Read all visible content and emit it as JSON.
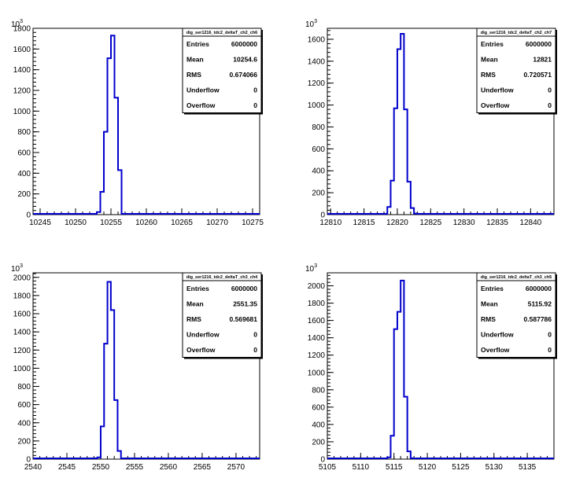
{
  "colors": {
    "histogram": "#0000cc",
    "frame": "#000000",
    "background": "#ffffff"
  },
  "chart_data": [
    {
      "type": "bar",
      "histogram_style": "step",
      "title": "dig_ser1216_tdc2_deltaT_ch2_ch6",
      "xlim": [
        10244,
        10276
      ],
      "ylim": [
        0,
        1800
      ],
      "y_exponent": "10",
      "y_exponent_power": "3",
      "bin_width": 0.5,
      "x": [
        10253.0,
        10253.5,
        10254.0,
        10254.5,
        10255.0,
        10255.5,
        10256.0
      ],
      "values": [
        25,
        220,
        800,
        1510,
        1730,
        1130,
        430
      ],
      "xticks": [
        10245,
        10250,
        10255,
        10260,
        10265,
        10270,
        10275
      ],
      "yticks": [
        0,
        200,
        400,
        600,
        800,
        1000,
        1200,
        1400,
        1600,
        1800
      ],
      "stats": [
        {
          "label": "Entries",
          "value": "6000000"
        },
        {
          "label": "Mean",
          "value": "10254.6"
        },
        {
          "label": "RMS",
          "value": "0.674066"
        },
        {
          "label": "Underflow",
          "value": "0"
        },
        {
          "label": "Overflow",
          "value": "0"
        }
      ]
    },
    {
      "type": "bar",
      "histogram_style": "step",
      "title": "dig_ser1216_tdc2_deltaT_ch2_ch7",
      "xlim": [
        12809.5,
        12843.5
      ],
      "ylim": [
        0,
        1700
      ],
      "y_exponent": "10",
      "y_exponent_power": "3",
      "bin_width": 0.5,
      "x": [
        12818.5,
        12819.0,
        12819.5,
        12820.0,
        12820.5,
        12821.0,
        12821.5,
        12822.0,
        12822.5
      ],
      "values": [
        70,
        310,
        970,
        1510,
        1650,
        960,
        300,
        60,
        10
      ],
      "xticks": [
        12810,
        12815,
        12820,
        12825,
        12830,
        12835,
        12840
      ],
      "yticks": [
        0,
        200,
        400,
        600,
        800,
        1000,
        1200,
        1400,
        1600
      ],
      "stats": [
        {
          "label": "Entries",
          "value": "6000000"
        },
        {
          "label": "Mean",
          "value": "12821"
        },
        {
          "label": "RMS",
          "value": "0.720571"
        },
        {
          "label": "Underflow",
          "value": "0"
        },
        {
          "label": "Overflow",
          "value": "0"
        }
      ]
    },
    {
      "type": "bar",
      "histogram_style": "step",
      "title": "dig_ser1216_tdc2_deltaT_ch3_ch4",
      "xlim": [
        2540,
        2573.5
      ],
      "ylim": [
        0,
        2050
      ],
      "y_exponent": "10",
      "y_exponent_power": "3",
      "bin_width": 0.5,
      "x": [
        2549.5,
        2550.0,
        2550.5,
        2551.0,
        2551.5,
        2552.0,
        2552.5
      ],
      "values": [
        20,
        360,
        1270,
        1950,
        1640,
        650,
        90
      ],
      "xticks": [
        2540,
        2545,
        2550,
        2555,
        2560,
        2565,
        2570
      ],
      "yticks": [
        0,
        200,
        400,
        600,
        800,
        1000,
        1200,
        1400,
        1600,
        1800,
        2000
      ],
      "stats": [
        {
          "label": "Entries",
          "value": "6000000"
        },
        {
          "label": "Mean",
          "value": "2551.35"
        },
        {
          "label": "RMS",
          "value": "0.569681"
        },
        {
          "label": "Underflow",
          "value": "0"
        },
        {
          "label": "Overflow",
          "value": "0"
        }
      ]
    },
    {
      "type": "bar",
      "histogram_style": "step",
      "title": "dig_ser1216_tdc2_deltaT_ch3_ch5",
      "xlim": [
        5105,
        5139
      ],
      "ylim": [
        0,
        2150
      ],
      "y_exponent": "10",
      "y_exponent_power": "3",
      "bin_width": 0.5,
      "x": [
        5114.0,
        5114.5,
        5115.0,
        5115.5,
        5116.0,
        5116.5,
        5117.0,
        5117.5
      ],
      "values": [
        20,
        270,
        1500,
        1700,
        2060,
        720,
        90,
        10
      ],
      "xticks": [
        5105,
        5110,
        5115,
        5120,
        5125,
        5130,
        5135
      ],
      "yticks": [
        0,
        200,
        400,
        600,
        800,
        1000,
        1200,
        1400,
        1600,
        1800,
        2000
      ],
      "stats": [
        {
          "label": "Entries",
          "value": "6000000"
        },
        {
          "label": "Mean",
          "value": "5115.92"
        },
        {
          "label": "RMS",
          "value": "0.587786"
        },
        {
          "label": "Underflow",
          "value": "0"
        },
        {
          "label": "Overflow",
          "value": "0"
        }
      ]
    }
  ]
}
